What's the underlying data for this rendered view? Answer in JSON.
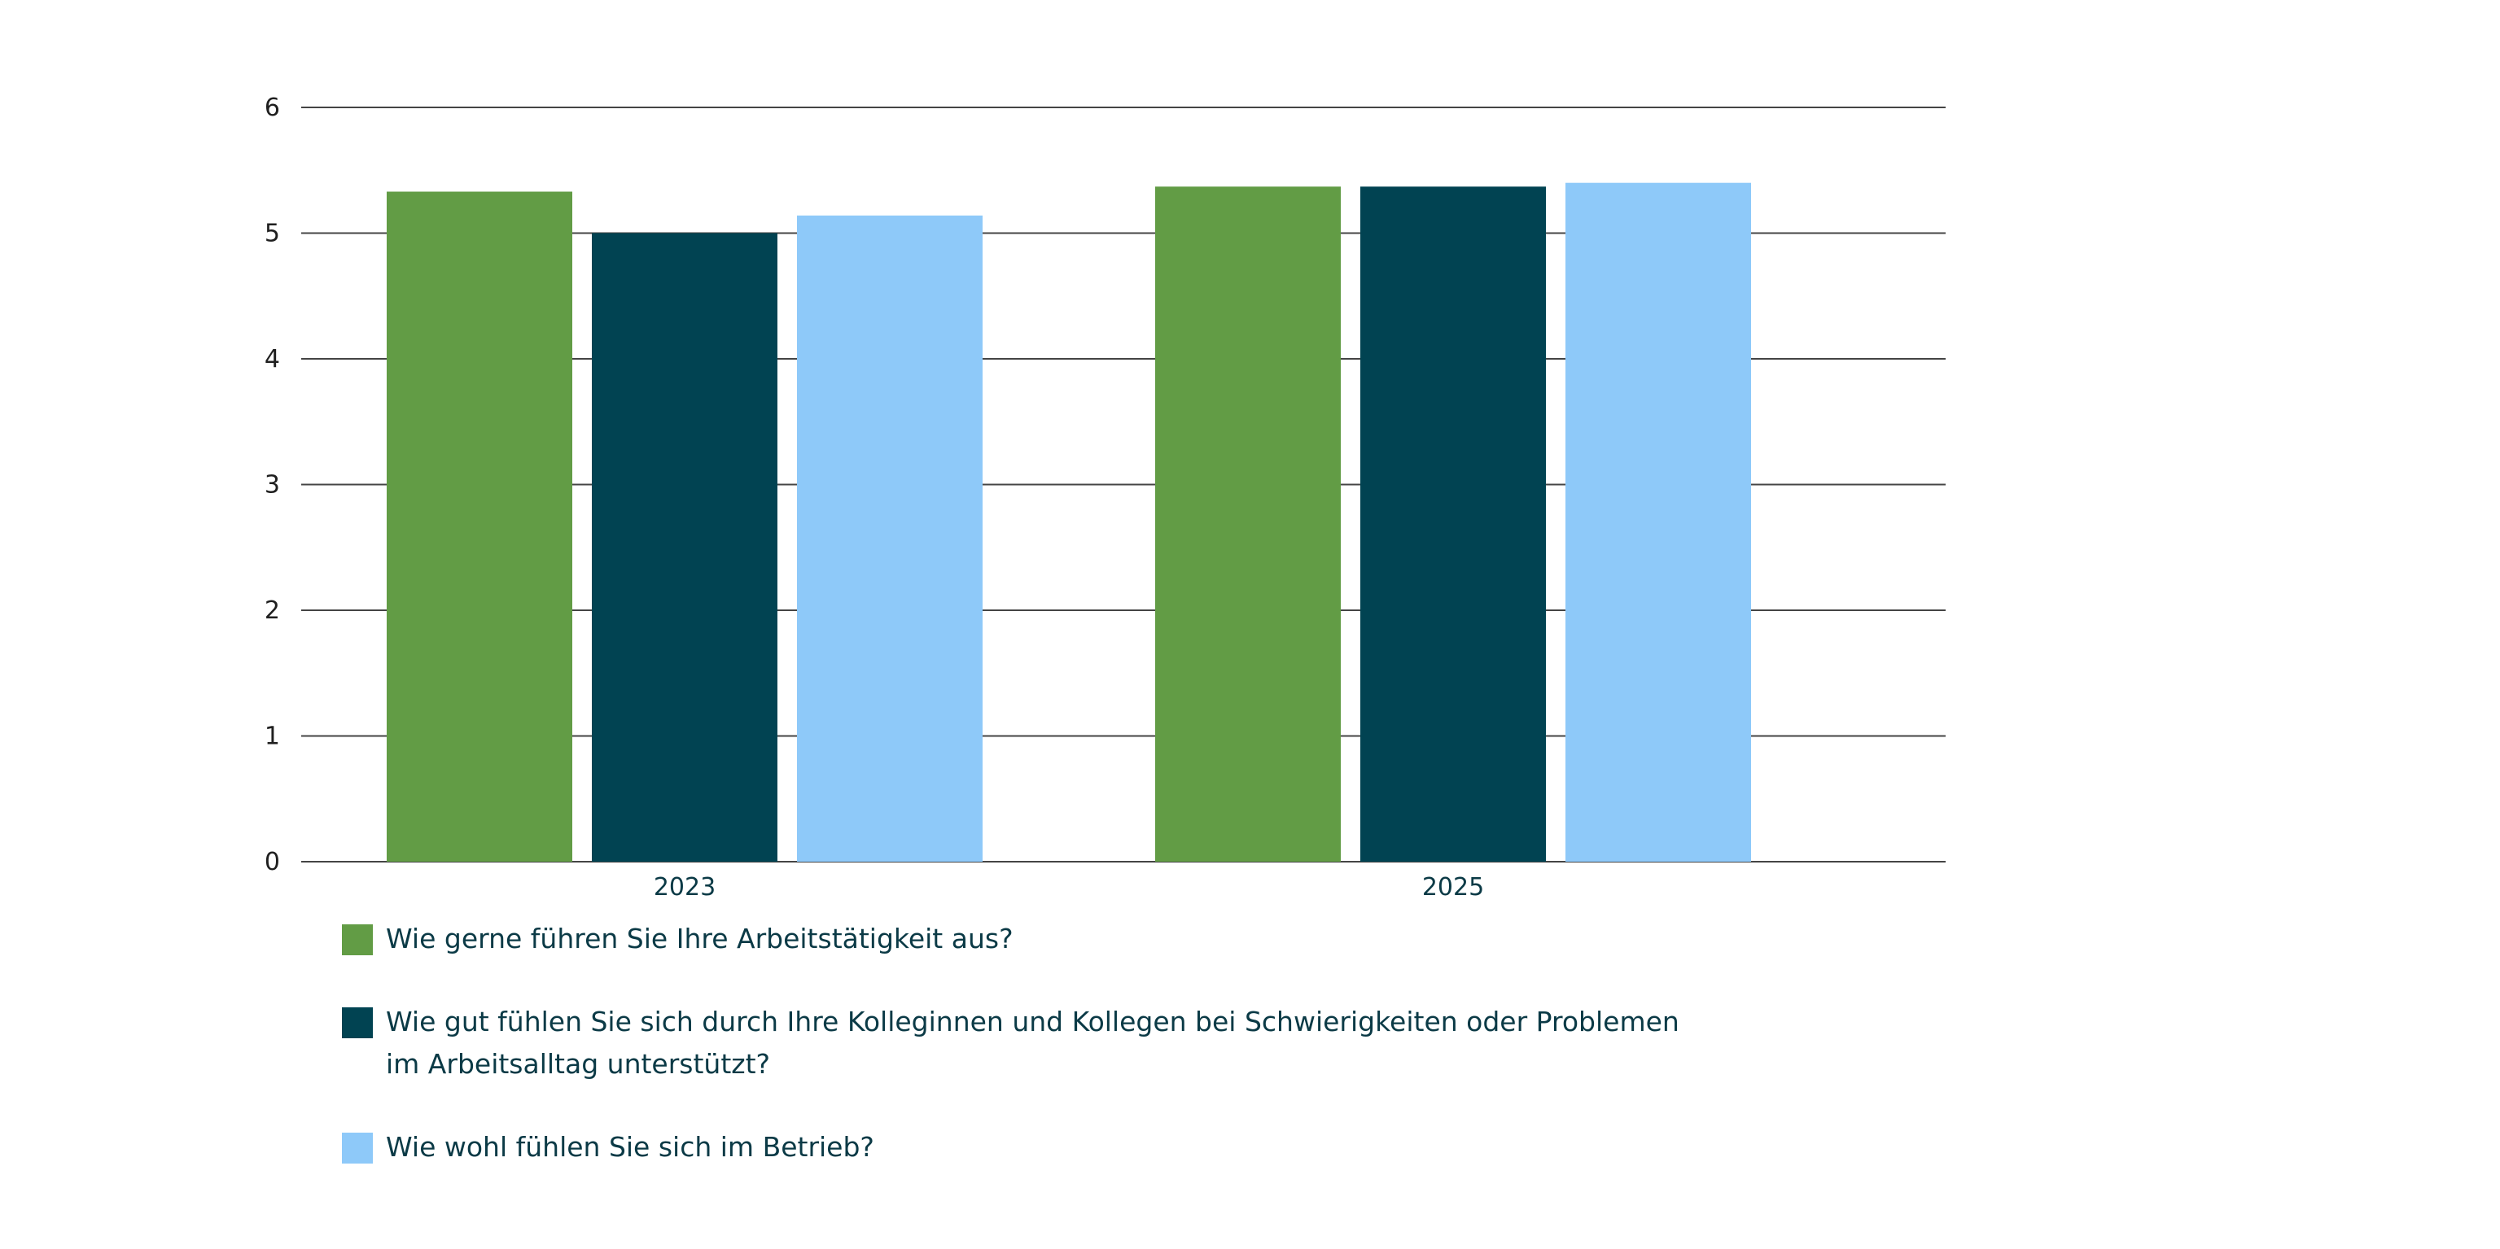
{
  "chart_data": {
    "type": "bar",
    "categories": [
      "2023",
      "2025"
    ],
    "series": [
      {
        "name": "Wie gerne führen Sie Ihre Arbeitstätigkeit aus?",
        "values": [
          5.33,
          5.37
        ],
        "color": "#629c45"
      },
      {
        "name": "Wie gut fühlen Sie sich durch Ihre Kolleginnen und Kollegen bei Schwierigkeiten oder Problemen im Arbeitsalltag unterstützt?",
        "values": [
          5.0,
          5.37
        ],
        "color": "#014352"
      },
      {
        "name": "Wie wohl fühlen Sie sich im Betrieb?",
        "values": [
          5.14,
          5.4
        ],
        "color": "#8ec9f9"
      }
    ],
    "y_ticks": [
      "0",
      "1",
      "2",
      "3",
      "4",
      "5",
      "6"
    ],
    "ylim": [
      0,
      6
    ],
    "grid": true,
    "legend_position": "bottom-left"
  }
}
